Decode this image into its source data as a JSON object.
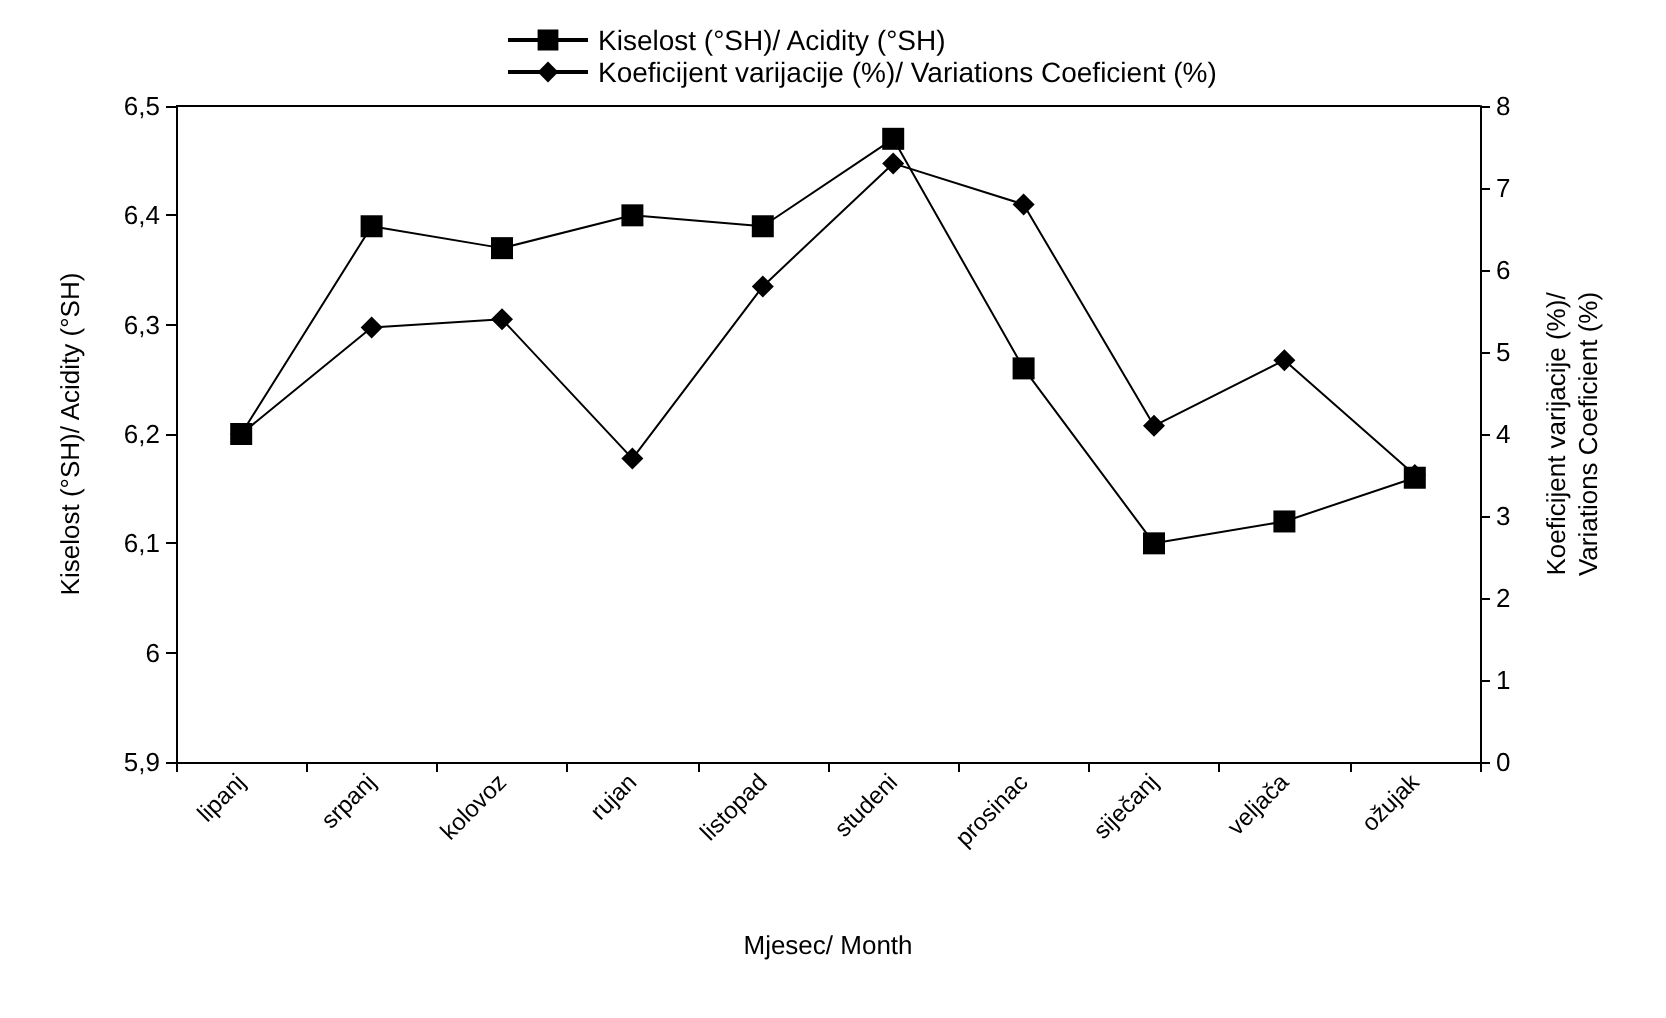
{
  "chart_data": {
    "type": "line",
    "xlabel": "Mjesec/ Month",
    "ylabel": "Kiselost (°SH)/ Acidity (°SH)",
    "y2label": "Koeficijent varijacije (%)/\nVariations Coeficient (%)",
    "categories": [
      "lipanj",
      "srpanj",
      "kolovoz",
      "rujan",
      "listopad",
      "studeni",
      "prosinac",
      "siječanj",
      "veljača",
      "ožujak"
    ],
    "series": [
      {
        "name": "Kiselost (°SH)/ Acidity (°SH)",
        "color": "#000000",
        "marker": "square",
        "values": [
          6.2,
          6.39,
          6.37,
          6.4,
          6.39,
          6.47,
          6.26,
          6.1,
          6.12,
          6.16
        ]
      },
      {
        "name": "Koeficijent varijacije (%)/ Variations Coeficient (%)",
        "color": "#000000",
        "marker": "diamond",
        "axis": "y2",
        "values": [
          4.0,
          5.3,
          5.4,
          3.7,
          5.8,
          7.3,
          6.8,
          4.1,
          4.9,
          3.5
        ]
      }
    ],
    "ylim": [
      5.9,
      6.5
    ],
    "yticks": [
      {
        "value": 5.9,
        "label": "5,9"
      },
      {
        "value": 6.0,
        "label": "6"
      },
      {
        "value": 6.1,
        "label": "6,1"
      },
      {
        "value": 6.2,
        "label": "6,2"
      },
      {
        "value": 6.3,
        "label": "6,3"
      },
      {
        "value": 6.4,
        "label": "6,4"
      },
      {
        "value": 6.5,
        "label": "6,5"
      }
    ],
    "y2lim": [
      0,
      8
    ],
    "y2ticks": [
      0,
      1,
      2,
      3,
      4,
      5,
      6,
      7,
      8
    ],
    "legend": "top",
    "grid": false,
    "line_style": "solid"
  }
}
